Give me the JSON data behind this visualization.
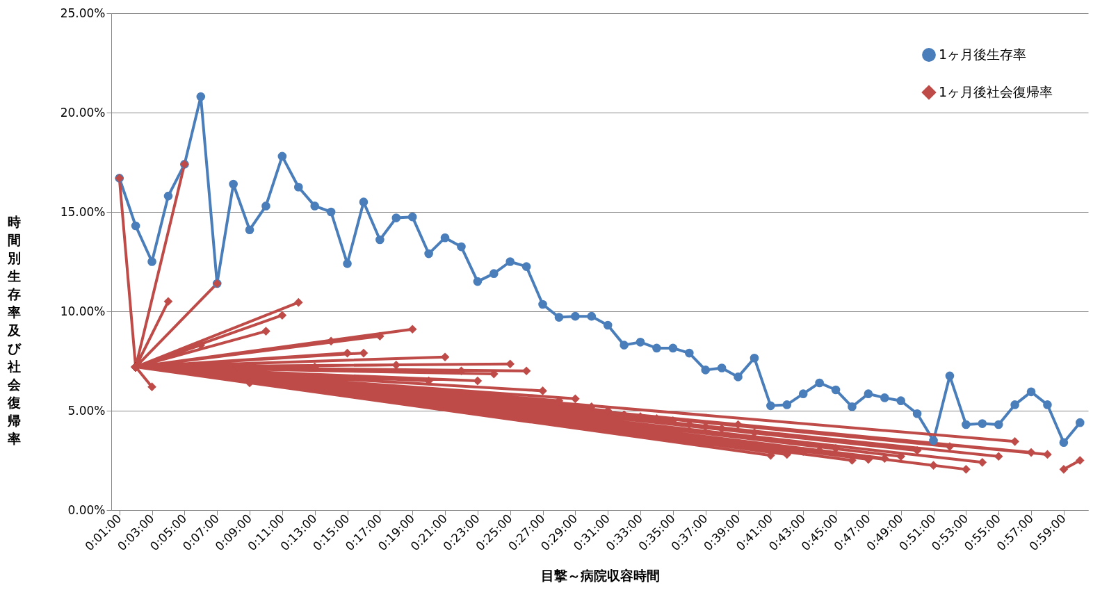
{
  "chart_data": {
    "type": "line",
    "xlabel": "目撃～病院収容時間",
    "ylabel": "時間別生存率及び社会復帰率",
    "x": [
      1,
      2,
      3,
      4,
      5,
      6,
      7,
      8,
      9,
      10,
      11,
      12,
      13,
      14,
      15,
      16,
      17,
      18,
      19,
      20,
      21,
      22,
      23,
      24,
      25,
      26,
      27,
      28,
      29,
      30,
      31,
      32,
      33,
      34,
      35,
      36,
      37,
      38,
      39,
      40,
      41,
      42,
      43,
      44,
      45,
      46,
      47,
      48,
      49,
      50,
      51,
      52,
      53,
      54,
      55,
      56,
      57,
      58,
      59,
      60
    ],
    "xlim": [
      0.5,
      60.5
    ],
    "xticks": [
      {
        "value": 1,
        "label": "0:01:00"
      },
      {
        "value": 3,
        "label": "0:03:00"
      },
      {
        "value": 5,
        "label": "0:05:00"
      },
      {
        "value": 7,
        "label": "0:07:00"
      },
      {
        "value": 9,
        "label": "0:09:00"
      },
      {
        "value": 11,
        "label": "0:11:00"
      },
      {
        "value": 13,
        "label": "0:13:00"
      },
      {
        "value": 15,
        "label": "0:15:00"
      },
      {
        "value": 17,
        "label": "0:17:00"
      },
      {
        "value": 19,
        "label": "0:19:00"
      },
      {
        "value": 21,
        "label": "0:21:00"
      },
      {
        "value": 23,
        "label": "0:23:00"
      },
      {
        "value": 25,
        "label": "0:25:00"
      },
      {
        "value": 27,
        "label": "0:27:00"
      },
      {
        "value": 29,
        "label": "0:29:00"
      },
      {
        "value": 31,
        "label": "0:31:00"
      },
      {
        "value": 33,
        "label": "0:33:00"
      },
      {
        "value": 35,
        "label": "0:35:00"
      },
      {
        "value": 37,
        "label": "0:37:00"
      },
      {
        "value": 39,
        "label": "0:39:00"
      },
      {
        "value": 41,
        "label": "0:41:00"
      },
      {
        "value": 43,
        "label": "0:43:00"
      },
      {
        "value": 45,
        "label": "0:45:00"
      },
      {
        "value": 47,
        "label": "0:47:00"
      },
      {
        "value": 49,
        "label": "0:49:00"
      },
      {
        "value": 51,
        "label": "0:51:00"
      },
      {
        "value": 53,
        "label": "0:53:00"
      },
      {
        "value": 55,
        "label": "0:55:00"
      },
      {
        "value": 57,
        "label": "0:57:00"
      },
      {
        "value": 59,
        "label": "0:59:00"
      }
    ],
    "ylim": [
      0,
      25
    ],
    "yticks": [
      {
        "value": 0,
        "label": "0.00%"
      },
      {
        "value": 5,
        "label": "5.00%"
      },
      {
        "value": 10,
        "label": "10.00%"
      },
      {
        "value": 15,
        "label": "15.00%"
      },
      {
        "value": 20,
        "label": "20.00%"
      },
      {
        "value": 25,
        "label": "25.00%"
      }
    ],
    "grid": "y",
    "legend": "top right",
    "line_style": "solid",
    "series": [
      {
        "name": "1ヶ月後生存率",
        "color": "#4a7ebb",
        "marker": "circle",
        "values": [
          16.7,
          14.3,
          12.5,
          15.8,
          17.4,
          20.8,
          11.4,
          16.4,
          14.1,
          15.3,
          17.8,
          16.25,
          15.3,
          15.0,
          12.4,
          15.5,
          13.6,
          14.7,
          14.75,
          12.9,
          13.7,
          13.25,
          11.5,
          11.9,
          12.5,
          12.25,
          10.35,
          9.7,
          9.75,
          9.75,
          9.3,
          8.3,
          8.45,
          8.15,
          8.15,
          7.9,
          7.05,
          7.15,
          6.7,
          7.65,
          5.25,
          5.3,
          5.85,
          6.4,
          6.05,
          5.2,
          5.85,
          5.65,
          5.5,
          4.85,
          3.5,
          6.75,
          4.3,
          4.35,
          4.3,
          5.3,
          5.95,
          5.3,
          3.4,
          4.4
        ]
      },
      {
        "name": "1ヶ月後社会復帰率",
        "color": "#be4b48",
        "marker": "diamond",
        "x": [
          1,
          2,
          3,
          2,
          4,
          2,
          5,
          2,
          6,
          2,
          7,
          2,
          8,
          2,
          9,
          2,
          10,
          2,
          11,
          2,
          12,
          2,
          13,
          2,
          14,
          2,
          15,
          2,
          16,
          2,
          17,
          2,
          18,
          2,
          19,
          2,
          20,
          2,
          21,
          2,
          22,
          2,
          23,
          2,
          24,
          2,
          25,
          2,
          26,
          2,
          27,
          2,
          28,
          2,
          29,
          2,
          30,
          2,
          31,
          2,
          32,
          2,
          33,
          2,
          34,
          2,
          35,
          2,
          36,
          2,
          37,
          2,
          38,
          2,
          39,
          2,
          40,
          2,
          41,
          2,
          42,
          2,
          43,
          2,
          44,
          2,
          45,
          2,
          46,
          2,
          47,
          2,
          48,
          2,
          49,
          2,
          50,
          2,
          51,
          2,
          52,
          2,
          53,
          2,
          54,
          2,
          55,
          2,
          56,
          2,
          57,
          2,
          58,
          null,
          59,
          60
        ],
        "values": [
          16.7,
          7.2,
          6.2,
          7.2,
          10.5,
          7.2,
          17.4,
          7.2,
          8.3,
          7.2,
          11.4,
          7.2,
          7.0,
          7.2,
          6.4,
          7.2,
          9.0,
          7.2,
          9.8,
          7.2,
          10.45,
          7.2,
          7.2,
          7.2,
          8.5,
          7.2,
          7.9,
          7.2,
          7.9,
          7.2,
          8.75,
          7.2,
          7.3,
          7.2,
          9.1,
          7.2,
          6.5,
          7.2,
          7.7,
          7.2,
          7.0,
          7.2,
          6.5,
          7.2,
          6.85,
          7.2,
          7.35,
          7.2,
          7.0,
          7.2,
          6.0,
          7.2,
          5.5,
          7.2,
          5.6,
          7.2,
          5.2,
          7.2,
          5.0,
          7.2,
          4.8,
          7.2,
          4.7,
          7.2,
          4.6,
          7.2,
          4.5,
          7.2,
          4.3,
          7.2,
          4.2,
          7.2,
          4.1,
          7.2,
          4.3,
          7.2,
          3.9,
          7.2,
          2.75,
          7.2,
          2.8,
          7.2,
          2.95,
          7.2,
          3.0,
          7.2,
          3.1,
          7.2,
          2.5,
          7.2,
          2.55,
          7.2,
          2.6,
          7.2,
          2.7,
          7.2,
          3.0,
          7.2,
          2.25,
          7.2,
          3.2,
          7.2,
          2.05,
          7.2,
          2.4,
          7.2,
          2.7,
          7.2,
          3.45,
          7.2,
          2.9,
          7.2,
          2.8,
          null,
          2.05,
          2.5
        ]
      }
    ]
  }
}
